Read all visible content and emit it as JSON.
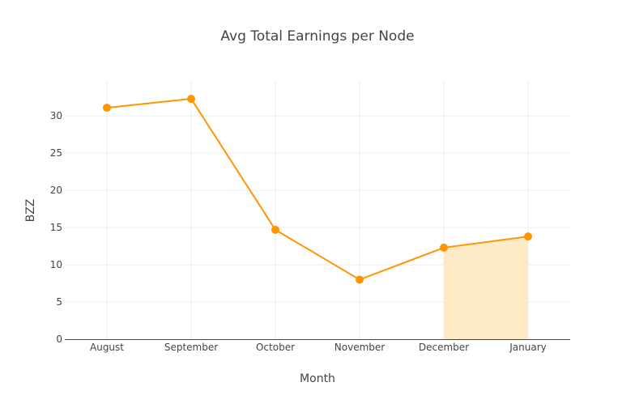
{
  "chart_data": {
    "type": "line",
    "title": "Avg Total Earnings per Node",
    "xlabel": "Month",
    "ylabel": "BZZ",
    "categories": [
      "August",
      "September",
      "October",
      "November",
      "December",
      "January"
    ],
    "series": [
      {
        "values": [
          31.1,
          32.3,
          14.7,
          8.0,
          12.3,
          13.8
        ],
        "color": "#ff9500"
      }
    ],
    "shaded_range": {
      "from": "December",
      "to": "January",
      "color": "#fdebc8"
    },
    "ylim": [
      0,
      34.7
    ],
    "yticks": [
      0,
      5,
      10,
      15,
      20,
      25,
      30
    ],
    "grid": true
  }
}
